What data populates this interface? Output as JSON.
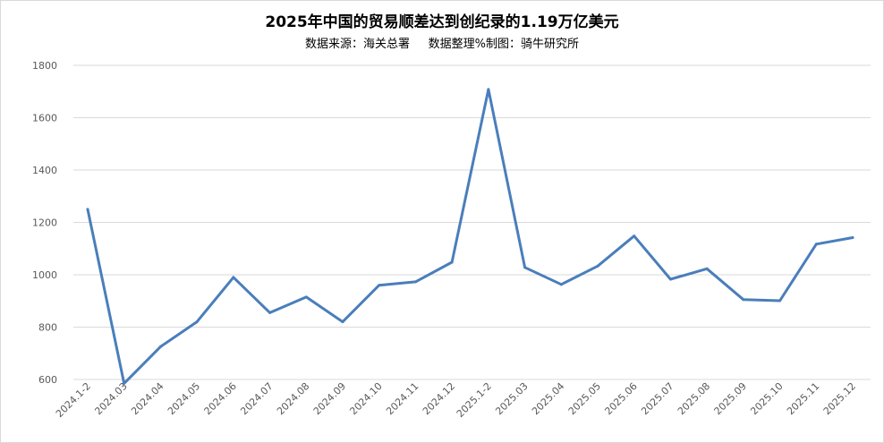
{
  "chart_data": {
    "type": "line",
    "title": "2025年中国的贸易顺差达到创纪录的1.19万亿美元",
    "subtitle": "数据来源：海关总署     数据整理%制图：骑牛研究所",
    "xlabel": "",
    "ylabel": "",
    "ylim": [
      600,
      1800
    ],
    "yticks": [
      600,
      800,
      1000,
      1200,
      1400,
      1600,
      1800
    ],
    "grid": true,
    "legend": "none",
    "categories": [
      "2024.1-2",
      "2024.03",
      "2024.04",
      "2024.05",
      "2024.06",
      "2024.07",
      "2024.08",
      "2024.09",
      "2024.10",
      "2024.11",
      "2024.12",
      "2025.1-2",
      "2025.03",
      "2025.04",
      "2025.05",
      "2025.06",
      "2025.07",
      "2025.08",
      "2025.09",
      "2025.10",
      "2025.11",
      "2025.12"
    ],
    "series": [
      {
        "color": "#4a7ebb",
        "values": [
          1250,
          585,
          725,
          820,
          990,
          855,
          915,
          820,
          960,
          973,
          1048,
          1708,
          1028,
          963,
          1033,
          1148,
          983,
          1023,
          905,
          901,
          1117,
          1142
        ]
      }
    ]
  }
}
